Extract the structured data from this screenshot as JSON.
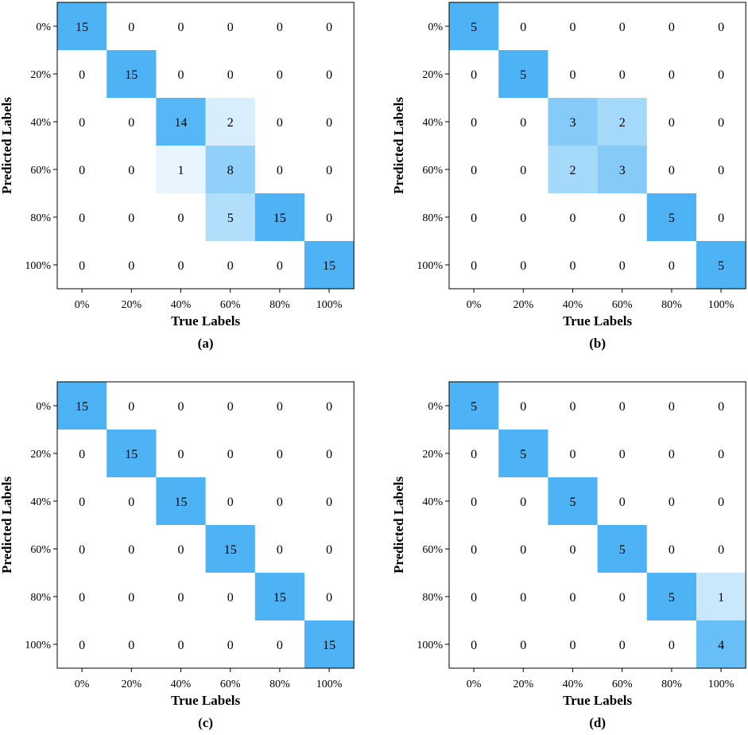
{
  "chart_data": [
    {
      "type": "heatmap",
      "caption": "(a)",
      "xlabel": "True Labels",
      "ylabel": "Predicted Labels",
      "x_categories": [
        "0%",
        "20%",
        "40%",
        "60%",
        "80%",
        "100%"
      ],
      "y_categories": [
        "0%",
        "20%",
        "40%",
        "60%",
        "80%",
        "100%"
      ],
      "max_value": 15,
      "matrix": [
        [
          15,
          0,
          0,
          0,
          0,
          0
        ],
        [
          0,
          15,
          0,
          0,
          0,
          0
        ],
        [
          0,
          0,
          14,
          2,
          0,
          0
        ],
        [
          0,
          0,
          1,
          8,
          0,
          0
        ],
        [
          0,
          0,
          0,
          5,
          15,
          0
        ],
        [
          0,
          0,
          0,
          0,
          0,
          15
        ]
      ]
    },
    {
      "type": "heatmap",
      "caption": "(b)",
      "xlabel": "True Labels",
      "ylabel": "Predicted Labels",
      "x_categories": [
        "0%",
        "20%",
        "40%",
        "60%",
        "80%",
        "100%"
      ],
      "y_categories": [
        "0%",
        "20%",
        "40%",
        "60%",
        "80%",
        "100%"
      ],
      "max_value": 5,
      "matrix": [
        [
          5,
          0,
          0,
          0,
          0,
          0
        ],
        [
          0,
          5,
          0,
          0,
          0,
          0
        ],
        [
          0,
          0,
          3,
          2,
          0,
          0
        ],
        [
          0,
          0,
          2,
          3,
          0,
          0
        ],
        [
          0,
          0,
          0,
          0,
          5,
          0
        ],
        [
          0,
          0,
          0,
          0,
          0,
          5
        ]
      ]
    },
    {
      "type": "heatmap",
      "caption": "(c)",
      "xlabel": "True Labels",
      "ylabel": "Predicted Labels",
      "x_categories": [
        "0%",
        "20%",
        "40%",
        "60%",
        "80%",
        "100%"
      ],
      "y_categories": [
        "0%",
        "20%",
        "40%",
        "60%",
        "80%",
        "100%"
      ],
      "max_value": 15,
      "matrix": [
        [
          15,
          0,
          0,
          0,
          0,
          0
        ],
        [
          0,
          15,
          0,
          0,
          0,
          0
        ],
        [
          0,
          0,
          15,
          0,
          0,
          0
        ],
        [
          0,
          0,
          0,
          15,
          0,
          0
        ],
        [
          0,
          0,
          0,
          0,
          15,
          0
        ],
        [
          0,
          0,
          0,
          0,
          0,
          15
        ]
      ]
    },
    {
      "type": "heatmap",
      "caption": "(d)",
      "xlabel": "True Labels",
      "ylabel": "Predicted Labels",
      "x_categories": [
        "0%",
        "20%",
        "40%",
        "60%",
        "80%",
        "100%"
      ],
      "y_categories": [
        "0%",
        "20%",
        "40%",
        "60%",
        "80%",
        "100%"
      ],
      "max_value": 5,
      "matrix": [
        [
          5,
          0,
          0,
          0,
          0,
          0
        ],
        [
          0,
          5,
          0,
          0,
          0,
          0
        ],
        [
          0,
          0,
          5,
          0,
          0,
          0
        ],
        [
          0,
          0,
          0,
          5,
          0,
          0
        ],
        [
          0,
          0,
          0,
          0,
          5,
          1
        ],
        [
          0,
          0,
          0,
          0,
          0,
          4
        ]
      ]
    }
  ],
  "colors": {
    "high": "#4db3f5",
    "low": "#ffffff",
    "axis": "#000000",
    "text": "#000000"
  }
}
